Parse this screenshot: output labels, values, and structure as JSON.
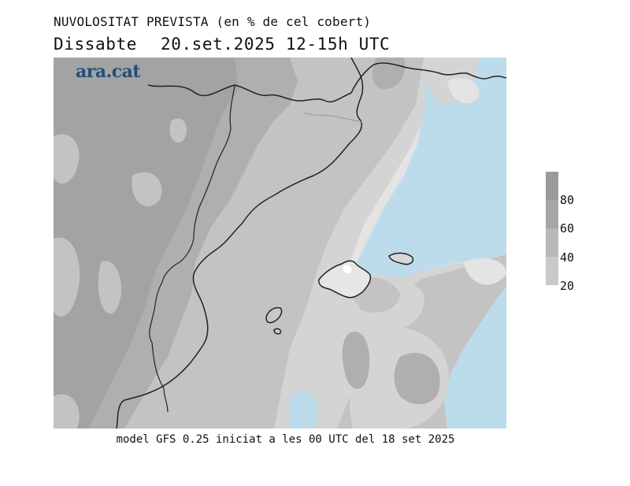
{
  "header": {
    "title": "NUVOLOSITAT PREVISTA (en % de cel cobert)",
    "day": "Dissabte",
    "date_time": "20.set.2025 12-15h UTC"
  },
  "logo": {
    "text": "ara.cat"
  },
  "legend": {
    "levels": [
      {
        "label": "80",
        "color": "#a6a6a6"
      },
      {
        "label": "60",
        "color": "#b8b8b8"
      },
      {
        "label": "40",
        "color": "#c9c9c9"
      },
      {
        "label": "20",
        "color": "#dcdcdc"
      }
    ],
    "top_color": "#9a9a9a"
  },
  "colors": {
    "sea": "#bcdcec",
    "cloud_100": "#a3a3a3",
    "cloud_80": "#afafaf",
    "cloud_60": "#c3c3c3",
    "cloud_40": "#d4d4d4",
    "cloud_20": "#e4e4e4",
    "coastline": "#222222",
    "border_grey": "#9a9a9a"
  },
  "footer": {
    "text": "model GFS 0.25 iniciat a les 00 UTC del 18 set 2025"
  }
}
